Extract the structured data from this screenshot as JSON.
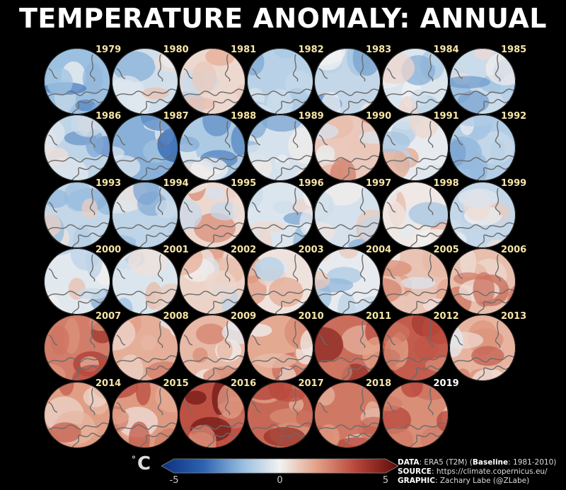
{
  "title": "TEMPERATURE ANOMALY: ANNUAL",
  "colors": {
    "background": "#000000",
    "year_label": "#f7e6a6",
    "last_year_label": "#ffffff",
    "cold": "#0b2f7f",
    "neutral": "#f2f2f2",
    "warm": "#5e0a0a"
  },
  "chart_data": {
    "type": "heatmap",
    "title": "TEMPERATURE ANOMALY: ANNUAL",
    "layout": "small-multiples-polar-maps",
    "rows": 6,
    "cols": 7,
    "years": [
      1979,
      1980,
      1981,
      1982,
      1983,
      1984,
      1985,
      1986,
      1987,
      1988,
      1989,
      1990,
      1991,
      1992,
      1993,
      1994,
      1995,
      1996,
      1997,
      1998,
      1999,
      2000,
      2001,
      2002,
      2003,
      2004,
      2005,
      2006,
      2007,
      2008,
      2009,
      2010,
      2011,
      2012,
      2013,
      2014,
      2015,
      2016,
      2017,
      2018,
      2019
    ],
    "mean_anomaly_estimate": [
      -1.5,
      -0.6,
      0.5,
      -1.0,
      -0.8,
      -0.4,
      -0.7,
      -0.9,
      -1.8,
      -1.2,
      -0.5,
      0.8,
      -0.2,
      -1.1,
      -0.8,
      -0.9,
      0.5,
      -0.4,
      -0.5,
      0.2,
      -0.8,
      -0.3,
      -0.4,
      0.6,
      0.3,
      -0.2,
      0.9,
      1.0,
      2.2,
      1.3,
      1.1,
      1.4,
      2.5,
      2.8,
      1.2,
      1.6,
      1.7,
      3.0,
      2.6,
      2.3,
      1.9
    ],
    "colorbar": {
      "unit": "°C",
      "min": -5,
      "max": 5,
      "ticks": [
        -5,
        0,
        5
      ],
      "tick_labels": [
        "-5",
        "0",
        "5"
      ],
      "colormap": "blue-white-red"
    }
  },
  "credits": {
    "data_label": "DATA",
    "data_text": ": ERA5 (T2M) (",
    "baseline_label": "Baseline",
    "baseline_text": ": 1981-2010)",
    "source_label": "SOURCE",
    "source_text": ": https://climate.copernicus.eu/",
    "graphic_label": "GRAPHIC",
    "graphic_text": ": Zachary Labe (@ZLabe)"
  }
}
